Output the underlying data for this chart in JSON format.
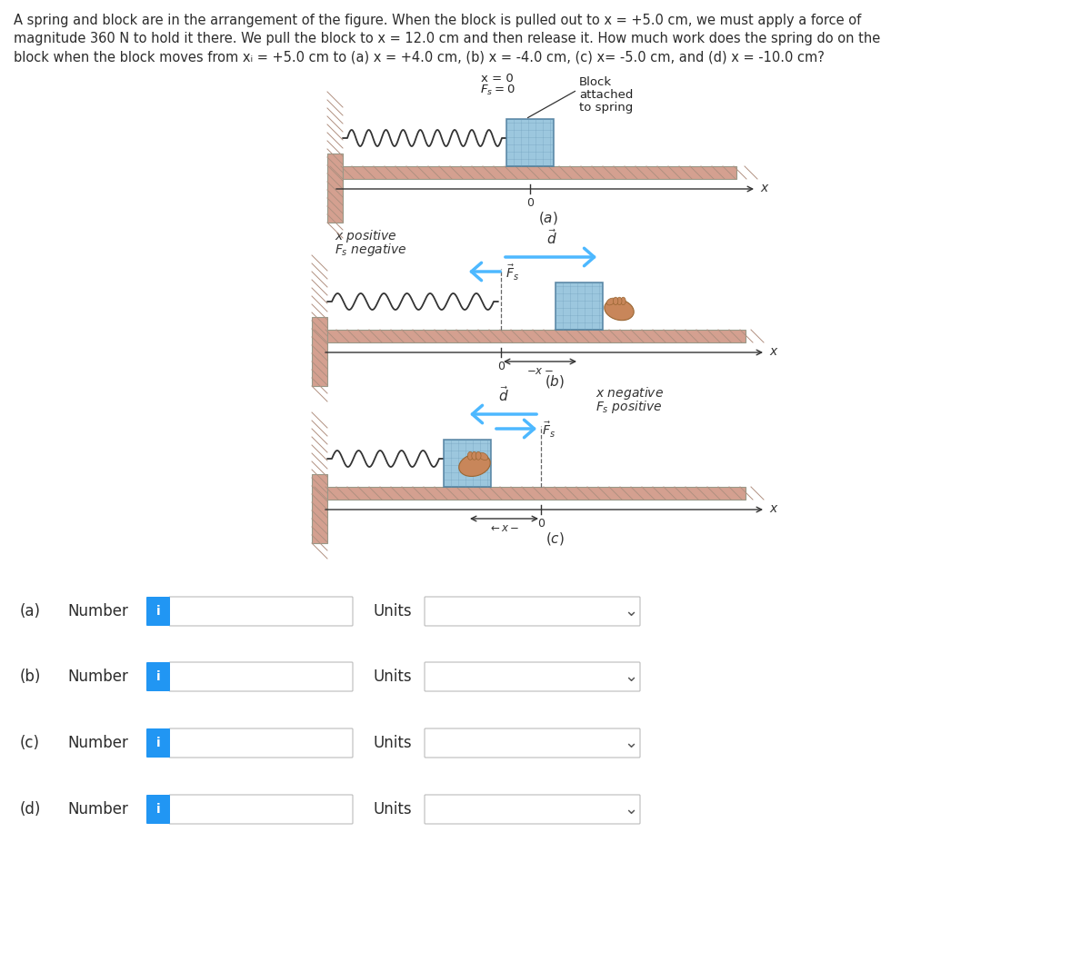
{
  "bg_color": "#ffffff",
  "text_color": "#2c2c2c",
  "wall_color": "#d4a090",
  "floor_color": "#d4a090",
  "block_color": "#8bbdd9",
  "hand_color": "#c8865a",
  "arrow_color": "#4db8ff",
  "axis_color": "#333333",
  "spring_color": "#333333",
  "icon_bg": "#2196F3",
  "title_lines": [
    "A spring and block are in the arrangement of the figure. When the block is pulled out to x = +5.0 cm, we must apply a force of",
    "magnitude 360 N to hold it there. We pull the block to x = 12.0 cm and then release it. How much work does the spring do on the",
    "block when the block moves from xᵢ = +5.0 cm to (a) x = +4.0 cm, (b) x = -4.0 cm, (c) x= -5.0 cm, and (d) x = -10.0 cm?"
  ],
  "diagram_a_label": "(a)",
  "diagram_b_label": "(b)",
  "diagram_c_label": "(c)",
  "row_labels": [
    "(a)",
    "(b)",
    "(c)",
    "(d)"
  ]
}
